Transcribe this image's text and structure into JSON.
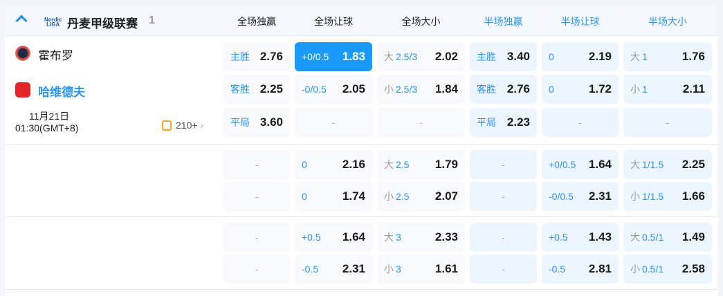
{
  "league": {
    "name": "丹麦甲级联赛",
    "count": "1",
    "logo_text": "LIGA"
  },
  "columns": [
    {
      "label": "全场独赢",
      "half": false
    },
    {
      "label": "全场让球",
      "half": false
    },
    {
      "label": "全场大小",
      "half": false
    },
    {
      "label": "半场独赢",
      "half": true
    },
    {
      "label": "半场让球",
      "half": true
    },
    {
      "label": "半场大小",
      "half": true
    }
  ],
  "match": {
    "home": "霍布罗",
    "away": "哈维德夫",
    "date": "11月21日",
    "time": "01:30(GMT+8)",
    "more": "210+"
  },
  "colors": {
    "accent": "#1a9bfc",
    "label": "#2a95ef"
  },
  "groups": [
    [
      [
        {
          "lab": "主胜",
          "odd": "2.76"
        },
        {
          "lab": "+0/0.5",
          "odd": "1.83",
          "selected": true
        },
        {
          "pre": "大",
          "lab": "2.5/3",
          "odd": "2.02"
        },
        {
          "lab": "主胜",
          "odd": "3.40"
        },
        {
          "lab": "0",
          "odd": "2.19"
        },
        {
          "pre": "大",
          "lab": "1",
          "odd": "1.76"
        }
      ],
      [
        {
          "lab": "客胜",
          "odd": "2.25"
        },
        {
          "lab": "-0/0.5",
          "odd": "2.05"
        },
        {
          "pre": "小",
          "lab": "2.5/3",
          "odd": "1.84"
        },
        {
          "lab": "客胜",
          "odd": "2.76"
        },
        {
          "lab": "0",
          "odd": "1.72"
        },
        {
          "pre": "小",
          "lab": "1",
          "odd": "2.11"
        }
      ],
      [
        {
          "lab": "平局",
          "odd": "3.60"
        },
        {
          "dash": "-"
        },
        {
          "dash": "-"
        },
        {
          "lab": "平局",
          "odd": "2.23"
        },
        {
          "dash": "-"
        },
        {
          "dash": "-"
        }
      ]
    ],
    [
      [
        {
          "dash": "-"
        },
        {
          "lab": "0",
          "odd": "2.16"
        },
        {
          "pre": "大",
          "lab": "2.5",
          "odd": "1.79"
        },
        {
          "dash": "-"
        },
        {
          "lab": "+0/0.5",
          "odd": "1.64"
        },
        {
          "pre": "大",
          "lab": "1/1.5",
          "odd": "2.25"
        }
      ],
      [
        {
          "dash": "-"
        },
        {
          "lab": "0",
          "odd": "1.74"
        },
        {
          "pre": "小",
          "lab": "2.5",
          "odd": "2.07"
        },
        {
          "dash": "-"
        },
        {
          "lab": "-0/0.5",
          "odd": "2.31"
        },
        {
          "pre": "小",
          "lab": "1/1.5",
          "odd": "1.66"
        }
      ]
    ],
    [
      [
        {
          "dash": "-"
        },
        {
          "lab": "+0.5",
          "odd": "1.64"
        },
        {
          "pre": "大",
          "lab": "3",
          "odd": "2.33"
        },
        {
          "dash": "-"
        },
        {
          "lab": "+0.5",
          "odd": "1.43"
        },
        {
          "pre": "大",
          "lab": "0.5/1",
          "odd": "1.49"
        }
      ],
      [
        {
          "dash": "-"
        },
        {
          "lab": "-0.5",
          "odd": "2.31"
        },
        {
          "pre": "小",
          "lab": "3",
          "odd": "1.61"
        },
        {
          "dash": "-"
        },
        {
          "lab": "-0.5",
          "odd": "2.81"
        },
        {
          "pre": "小",
          "lab": "0.5/1",
          "odd": "2.58"
        }
      ]
    ]
  ]
}
